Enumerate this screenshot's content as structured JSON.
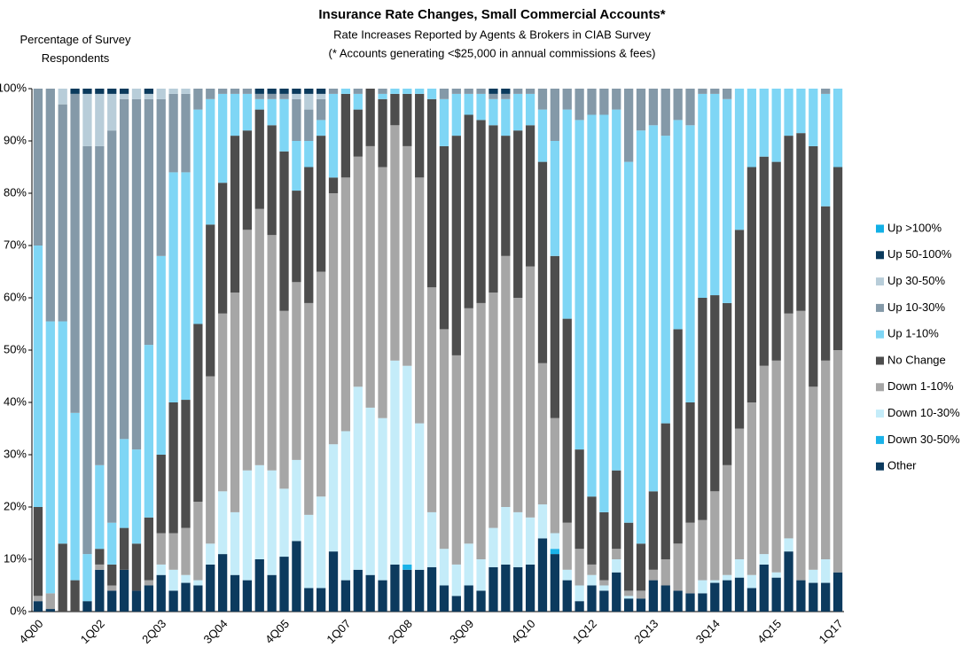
{
  "chart_data": {
    "type": "stacked_bar",
    "title": "Insurance Rate Changes, Small Commercial Accounts*",
    "subtitle": "Rate Increases Reported by Agents & Brokers in CIAB Survey",
    "note": "(* Accounts generating <$25,000 in annual commissions & fees)",
    "y_label": "Percentage of Survey Respondents",
    "categories": [
      "4Q00",
      null,
      null,
      null,
      null,
      "1Q02",
      null,
      null,
      null,
      null,
      "2Q03",
      null,
      null,
      null,
      null,
      "3Q04",
      null,
      null,
      null,
      null,
      "4Q05",
      null,
      null,
      null,
      null,
      "1Q07",
      null,
      null,
      null,
      null,
      "2Q08",
      null,
      null,
      null,
      null,
      "3Q09",
      null,
      null,
      null,
      null,
      "4Q10",
      null,
      null,
      null,
      null,
      "1Q12",
      null,
      null,
      null,
      null,
      "2Q13",
      null,
      null,
      null,
      null,
      "3Q14",
      null,
      null,
      null,
      null,
      "4Q15",
      null,
      null,
      null,
      null,
      "1Q17"
    ],
    "series": [
      {
        "name": "Other",
        "color": "#0c3a5e",
        "values": [
          2,
          0.5,
          0,
          0,
          2,
          8,
          4,
          8,
          4,
          5,
          7,
          4,
          5.5,
          5,
          9,
          11,
          7,
          6,
          10,
          7,
          10.5,
          13.5,
          4.5,
          4.5,
          11.5,
          6,
          8,
          7,
          6,
          9,
          8,
          8,
          8.5,
          5,
          3,
          5,
          4,
          8.5,
          9,
          8.5,
          9,
          14,
          11,
          6,
          2,
          5,
          4,
          7.5,
          2.5,
          2.5,
          6,
          5,
          4,
          3.5,
          3.5,
          5.5,
          6,
          6.5,
          4.5,
          9,
          6.5,
          11.5,
          6,
          5.5,
          5.5,
          7.5
        ]
      },
      {
        "name": "Down 30-50%",
        "color": "#1ab2e8",
        "values": [
          0,
          0,
          0,
          0,
          0,
          0,
          0,
          0,
          0,
          0,
          0,
          0,
          0,
          0,
          0,
          0,
          0,
          0,
          0,
          0,
          0,
          0,
          0,
          0,
          0,
          0,
          0,
          0,
          0,
          0,
          1,
          0,
          0,
          0,
          0,
          0,
          0,
          0,
          0,
          0,
          0,
          0,
          1,
          0,
          0,
          0,
          0,
          0,
          0,
          0,
          0,
          0,
          0,
          0,
          0,
          0,
          0,
          0,
          0,
          0,
          0,
          0,
          0,
          0,
          0,
          0
        ]
      },
      {
        "name": "Down 10-30%",
        "color": "#c4ecf9",
        "values": [
          0,
          0,
          0,
          0,
          0,
          0,
          0,
          0,
          0,
          0,
          2,
          4,
          1.5,
          1,
          4,
          12,
          12,
          21,
          18,
          20,
          13,
          15.5,
          14,
          17.5,
          20.5,
          28.5,
          35,
          32,
          31,
          39,
          38,
          28,
          10.5,
          7,
          6,
          8,
          6,
          7.5,
          11,
          10.5,
          9,
          6.5,
          3,
          2,
          3,
          2,
          1,
          2.5,
          0.5,
          0,
          0,
          0,
          0,
          0,
          2.5,
          0.5,
          1,
          3.5,
          2.5,
          2,
          1,
          2.5,
          0,
          2.5,
          4.5,
          0
        ]
      },
      {
        "name": "Down 1-10%",
        "color": "#a6a6a6",
        "values": [
          1,
          3,
          0,
          0,
          0,
          1,
          1,
          0,
          0,
          1,
          6,
          7,
          9,
          15,
          32,
          34,
          42,
          46,
          49,
          45,
          34,
          34,
          40.5,
          43,
          48,
          48.5,
          44,
          50,
          48,
          45,
          42,
          47,
          43,
          42,
          40,
          45,
          49,
          45,
          48,
          41,
          48,
          27,
          22,
          9,
          7,
          2,
          1,
          2,
          1,
          1.5,
          2,
          5,
          9,
          13.5,
          11.5,
          17,
          21,
          25,
          33,
          36,
          40.5,
          43,
          51.5,
          35,
          38,
          42.5
        ]
      },
      {
        "name": "No Change",
        "color": "#4d4d4d",
        "values": [
          17,
          0,
          13,
          6,
          0,
          3,
          4,
          8,
          9,
          12,
          15,
          25,
          24.5,
          34,
          29,
          25,
          30,
          19,
          19,
          21,
          30.5,
          17.5,
          26,
          26,
          3,
          16,
          9,
          11,
          13,
          6,
          10,
          16,
          36,
          35,
          42,
          37,
          35,
          32,
          23,
          32,
          27,
          38.5,
          31,
          39,
          19,
          13,
          13,
          15,
          13,
          9,
          15,
          26,
          41,
          23,
          42.5,
          37.5,
          31,
          38,
          45,
          40,
          38,
          34,
          34,
          46,
          29.5,
          35
        ]
      },
      {
        "name": "Up 1-10%",
        "color": "#7fd6f5",
        "values": [
          50,
          52,
          42.5,
          32,
          9,
          16,
          8,
          17,
          18,
          33,
          38,
          44,
          43.5,
          41,
          24,
          17,
          8,
          7,
          2,
          5,
          10,
          9.5,
          5,
          3,
          16,
          1,
          3,
          0,
          1,
          1,
          1,
          1,
          2,
          9,
          8,
          4,
          5,
          5,
          7,
          7,
          6,
          10,
          22,
          40,
          63,
          73,
          76,
          69,
          69,
          79,
          70,
          55,
          40,
          53,
          39,
          38.5,
          39,
          27,
          15,
          13,
          14,
          9,
          8.5,
          11,
          21.5,
          15
        ]
      },
      {
        "name": "Up 10-30%",
        "color": "#8499a8",
        "values": [
          30,
          44.5,
          41.5,
          61,
          78,
          61,
          75,
          65,
          67,
          47,
          30,
          15,
          15,
          4,
          2,
          1,
          1,
          1,
          1,
          1,
          1,
          8,
          6,
          4,
          1,
          0,
          1,
          0,
          1,
          0,
          0,
          0,
          0,
          2,
          1,
          1,
          1,
          1,
          1,
          1,
          1,
          4,
          10,
          4,
          6,
          5,
          5,
          4,
          14,
          8,
          7,
          9,
          6,
          7,
          1,
          1,
          2,
          0,
          0,
          0,
          0,
          0,
          0,
          0,
          1,
          0
        ]
      },
      {
        "name": "Up 30-50%",
        "color": "#b8cdd9",
        "values": [
          0,
          0,
          3,
          0,
          10,
          10,
          7,
          1,
          2,
          1,
          2,
          1,
          1,
          0,
          0,
          0,
          0,
          0,
          0,
          0,
          0,
          1,
          3,
          1,
          0,
          0,
          0,
          0,
          0,
          0,
          0,
          0,
          0,
          0,
          0,
          0,
          0,
          0,
          0,
          0,
          0,
          0,
          0,
          0,
          0,
          0,
          0,
          0,
          0,
          0,
          0,
          0,
          0,
          0,
          0,
          0,
          0,
          0,
          0,
          0,
          0,
          0,
          0,
          0,
          0,
          0
        ]
      },
      {
        "name": "Up 50-100%",
        "color": "#0a3a5c",
        "values": [
          0,
          0,
          0,
          1,
          1,
          1,
          1,
          1,
          0,
          1,
          0,
          0,
          0,
          0,
          0,
          0,
          0,
          0,
          1,
          1,
          1,
          1,
          1,
          1,
          0,
          0,
          0,
          0,
          0,
          0,
          0,
          0,
          0,
          0,
          0,
          0,
          0,
          1,
          1,
          0,
          0,
          0,
          0,
          0,
          0,
          0,
          0,
          0,
          0,
          0,
          0,
          0,
          0,
          0,
          0,
          0,
          0,
          0,
          0,
          0,
          0,
          0,
          0,
          0,
          0,
          0
        ]
      },
      {
        "name": "Up >100%",
        "color": "#12b0e6",
        "values": [
          0,
          0,
          0,
          0,
          0,
          0,
          0,
          0,
          0,
          0,
          0,
          0,
          0,
          0,
          0,
          0,
          0,
          0,
          0,
          0,
          0,
          0,
          0,
          0,
          0,
          0,
          0,
          0,
          0,
          0,
          0,
          0,
          0,
          0,
          0,
          0,
          0,
          0,
          0,
          0,
          0,
          0,
          0,
          0,
          0,
          0,
          0,
          0,
          0,
          0,
          0,
          0,
          0,
          0,
          0,
          0,
          0,
          0,
          0,
          0,
          0,
          0,
          0,
          0,
          0,
          0
        ]
      }
    ],
    "ylim": [
      0,
      100
    ],
    "yticks": [
      {
        "value": 0,
        "label": "0%"
      },
      {
        "value": 10,
        "label": "10%"
      },
      {
        "value": 20,
        "label": "20%"
      },
      {
        "value": 30,
        "label": "30%"
      },
      {
        "value": 40,
        "label": "40%"
      },
      {
        "value": 50,
        "label": "50%"
      },
      {
        "value": 60,
        "label": "60%"
      },
      {
        "value": 70,
        "label": "70%"
      },
      {
        "value": 80,
        "label": "80%"
      },
      {
        "value": 90,
        "label": "90%"
      },
      {
        "value": 100,
        "label": "100%"
      }
    ],
    "grid": false,
    "legend": "right"
  }
}
